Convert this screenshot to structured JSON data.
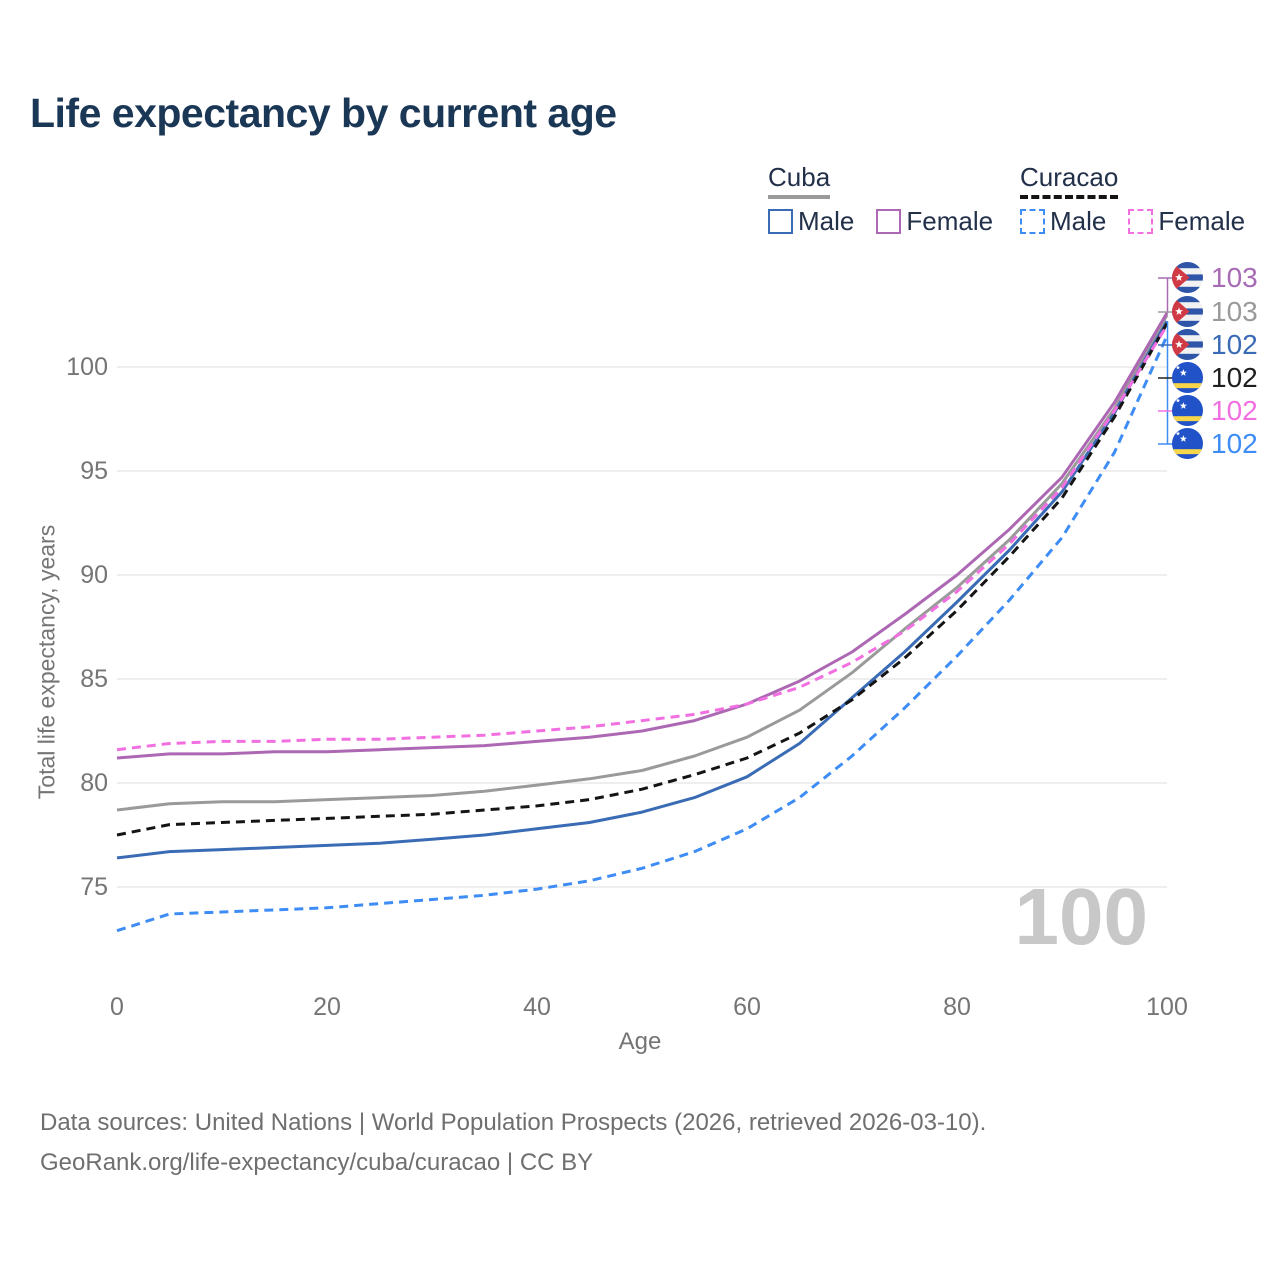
{
  "title": "Life expectancy by current age",
  "legend": {
    "groups": [
      {
        "name": "Cuba",
        "line_style": "solid",
        "underline_color": "#9a9a9a",
        "items": [
          {
            "label": "Male",
            "color": "#3a6bb5",
            "style": "solid"
          },
          {
            "label": "Female",
            "color": "#ad68b3",
            "style": "solid"
          }
        ]
      },
      {
        "name": "Curacao",
        "line_style": "dashed",
        "underline_color": "#141414",
        "items": [
          {
            "label": "Male",
            "color": "#3e8cf5",
            "style": "dashed"
          },
          {
            "label": "Female",
            "color": "#f26fe2",
            "style": "dashed"
          }
        ]
      }
    ]
  },
  "y_axis": {
    "title": "Total life expectancy, years",
    "ticks": [
      75,
      80,
      85,
      90,
      95,
      100
    ]
  },
  "x_axis": {
    "title": "Age",
    "ticks": [
      0,
      20,
      40,
      60,
      80,
      100
    ]
  },
  "watermark": "100",
  "end_labels": [
    {
      "value": "103",
      "flag": "cuba",
      "series": "Cuba Female",
      "color": "#a76ab5"
    },
    {
      "value": "103",
      "flag": "cuba",
      "series": "Cuba Both sexes",
      "color": "#9a9a9a"
    },
    {
      "value": "102",
      "flag": "cuba",
      "series": "Cuba Male",
      "color": "#3a6bb5"
    },
    {
      "value": "102",
      "flag": "curacao",
      "series": "Curacao Both sexes",
      "color": "#1f1f1f"
    },
    {
      "value": "102",
      "flag": "curacao",
      "series": "Curacao Female",
      "color": "#f26fe2"
    },
    {
      "value": "102",
      "flag": "curacao",
      "series": "Curacao Male",
      "color": "#3e8cf5"
    }
  ],
  "flag_colors": {
    "cuba": {
      "blue": "#2f55a8",
      "white": "#f2f2f2",
      "red": "#d03a45",
      "star": "#ffffff"
    },
    "curacao": {
      "blue": "#2152c8",
      "yellow": "#f7d64a",
      "star": "#ffffff"
    }
  },
  "grid_color": "#e8e8e8",
  "watermark_color": "#c8c8c8",
  "footer": {
    "line1": "Data sources: United Nations | World Population Prospects (2026, retrieved 2026-03-10).",
    "line2": "GeoRank.org/life-expectancy/cuba/curacao | CC BY"
  },
  "chart_data": {
    "type": "line",
    "title": "Life expectancy by current age",
    "xlabel": "Age",
    "ylabel": "Total life expectancy, years",
    "xlim": [
      0,
      100
    ],
    "ylim": [
      72.5,
      103.5
    ],
    "grid": "horizontal",
    "legend_position": "top-right",
    "x": [
      0,
      5,
      10,
      15,
      20,
      25,
      30,
      35,
      40,
      45,
      50,
      55,
      60,
      65,
      70,
      75,
      80,
      85,
      90,
      95,
      100
    ],
    "series": [
      {
        "name": "Cuba Both sexes",
        "country": "Cuba",
        "style": "solid",
        "color": "#9a9a9a",
        "values": [
          78.7,
          79.0,
          79.1,
          79.1,
          79.2,
          79.3,
          79.4,
          79.6,
          79.9,
          80.2,
          80.6,
          81.3,
          82.2,
          83.5,
          85.3,
          87.4,
          89.4,
          91.7,
          94.4,
          98.0,
          102.5
        ]
      },
      {
        "name": "Cuba Female",
        "country": "Cuba",
        "style": "solid",
        "color": "#ad68b3",
        "values": [
          81.2,
          81.4,
          81.4,
          81.5,
          81.5,
          81.6,
          81.7,
          81.8,
          82.0,
          82.2,
          82.5,
          83.0,
          83.8,
          84.9,
          86.3,
          88.1,
          90.0,
          92.2,
          94.7,
          98.3,
          102.6
        ]
      },
      {
        "name": "Cuba Male",
        "country": "Cuba",
        "style": "solid",
        "color": "#3a6bb5",
        "values": [
          76.4,
          76.7,
          76.8,
          76.9,
          77.0,
          77.1,
          77.3,
          77.5,
          77.8,
          78.1,
          78.6,
          79.3,
          80.3,
          81.9,
          84.1,
          86.3,
          88.7,
          91.2,
          94.0,
          97.8,
          102.2
        ]
      },
      {
        "name": "Curacao Both sexes",
        "country": "Curacao",
        "style": "dashed",
        "color": "#141414",
        "values": [
          77.5,
          78.0,
          78.1,
          78.2,
          78.3,
          78.4,
          78.5,
          78.7,
          78.9,
          79.2,
          79.7,
          80.4,
          81.2,
          82.4,
          84.0,
          86.0,
          88.3,
          90.9,
          93.7,
          97.6,
          102.1
        ]
      },
      {
        "name": "Curacao Female",
        "country": "Curacao",
        "style": "dashed",
        "color": "#f26fe2",
        "values": [
          81.6,
          81.9,
          82.0,
          82.0,
          82.1,
          82.1,
          82.2,
          82.3,
          82.5,
          82.7,
          83.0,
          83.3,
          83.8,
          84.6,
          85.8,
          87.3,
          89.2,
          91.5,
          94.2,
          97.9,
          102.0
        ]
      },
      {
        "name": "Curacao Male",
        "country": "Curacao",
        "style": "dashed",
        "color": "#3e8cf5",
        "values": [
          72.9,
          73.7,
          73.8,
          73.9,
          74.0,
          74.2,
          74.4,
          74.6,
          74.9,
          75.3,
          75.9,
          76.7,
          77.8,
          79.3,
          81.3,
          83.6,
          86.1,
          88.8,
          91.8,
          95.9,
          101.5
        ]
      }
    ]
  }
}
